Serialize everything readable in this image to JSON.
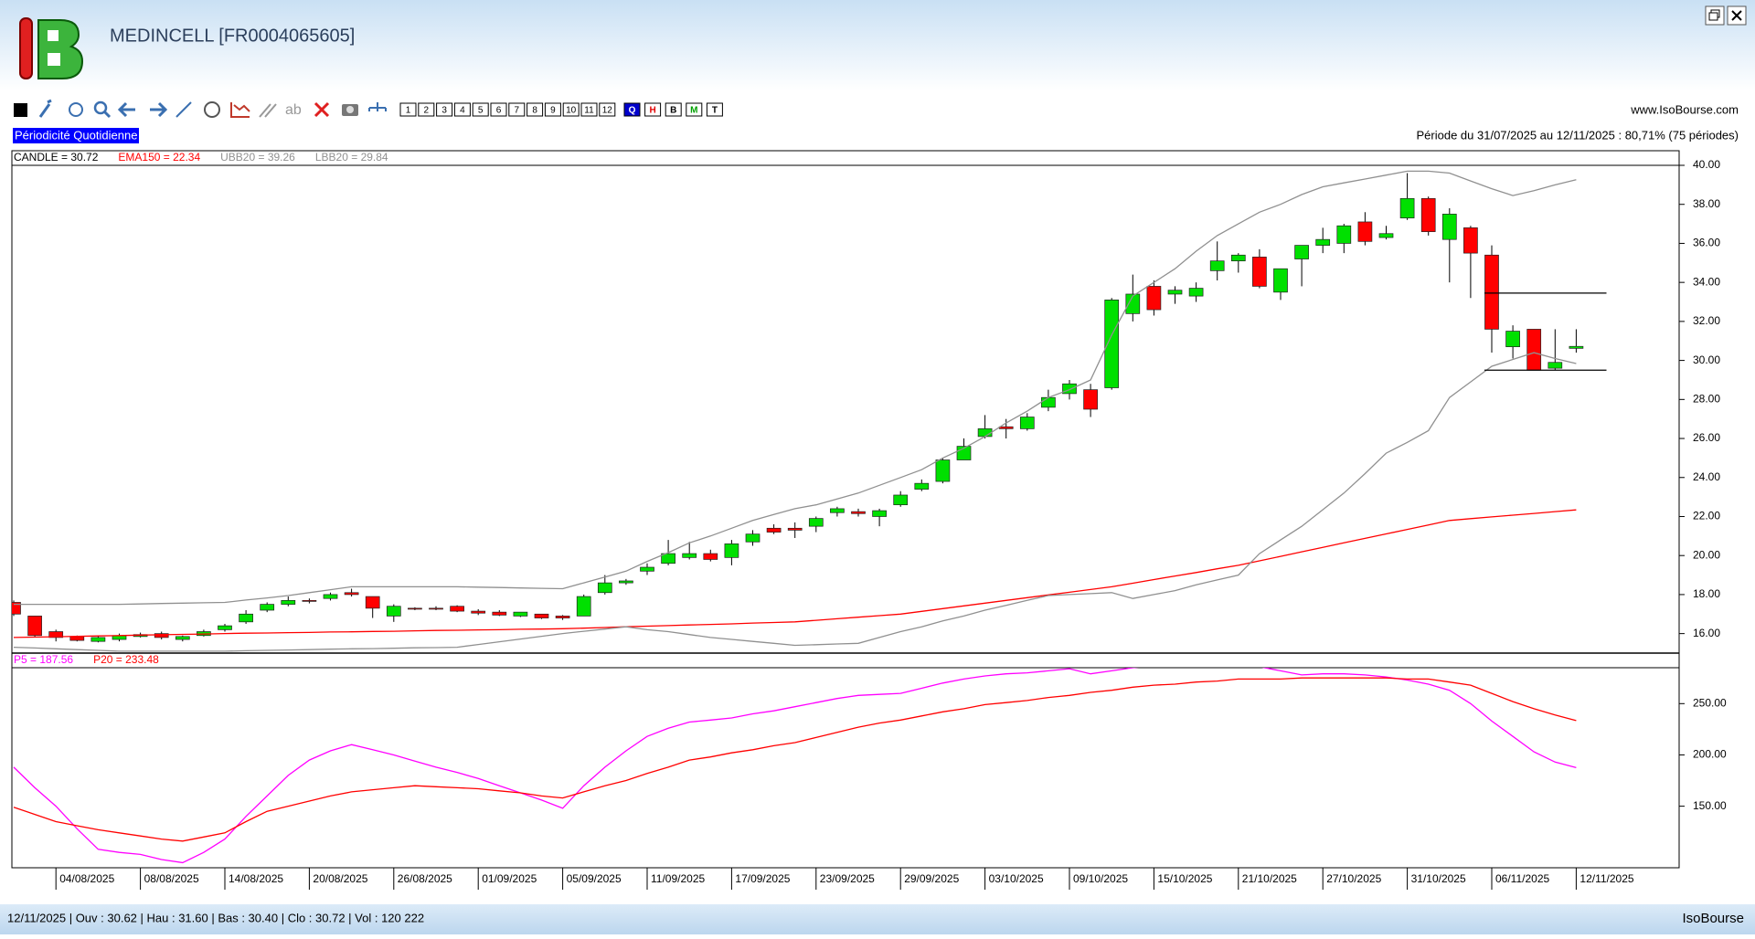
{
  "header": {
    "title": "MEDINCELL [FR0004065605]",
    "site": "www.IsoBourse.com",
    "periodicity": "Périodicité Quotidienne",
    "period": "Période du 31/07/2025 au 12/11/2025 : 80,71% (75 périodes)"
  },
  "toolbar": {
    "periods": [
      "1",
      "2",
      "3",
      "4",
      "5",
      "6",
      "7",
      "8",
      "9",
      "10",
      "11",
      "12"
    ],
    "modes": [
      "Q",
      "H",
      "B",
      "M",
      "T"
    ]
  },
  "chart_data": [
    {
      "type": "candlestick",
      "categories": [
        null,
        null,
        "04/08/2025",
        null,
        null,
        null,
        "08/08/2025",
        null,
        null,
        null,
        "14/08/2025",
        null,
        null,
        null,
        "20/08/2025",
        null,
        null,
        null,
        "26/08/2025",
        null,
        null,
        null,
        "01/09/2025",
        null,
        null,
        null,
        "05/09/2025",
        null,
        null,
        null,
        "11/09/2025",
        null,
        null,
        null,
        "17/09/2025",
        null,
        null,
        null,
        "23/09/2025",
        null,
        null,
        null,
        "29/09/2025",
        null,
        null,
        null,
        "03/10/2025",
        null,
        null,
        null,
        "09/10/2025",
        null,
        null,
        null,
        "15/10/2025",
        null,
        null,
        null,
        "21/10/2025",
        null,
        null,
        null,
        "27/10/2025",
        null,
        null,
        null,
        "31/10/2025",
        null,
        null,
        null,
        "06/11/2025",
        null,
        null,
        null,
        "12/11/2025"
      ],
      "series": [
        {
          "name": "CANDLE = 30.72",
          "color": "#000000",
          "up_color": "#00e000",
          "down_color": "#ff0000",
          "open": [
            17.6,
            16.9,
            16.1,
            15.85,
            15.6,
            15.7,
            15.85,
            16.0,
            15.7,
            15.9,
            16.2,
            16.6,
            17.2,
            17.5,
            17.7,
            17.8,
            18.1,
            17.9,
            16.9,
            17.3,
            17.3,
            17.4,
            17.15,
            17.1,
            16.9,
            17.0,
            16.9,
            16.9,
            18.1,
            18.6,
            19.2,
            19.6,
            19.9,
            20.1,
            19.9,
            20.7,
            21.4,
            21.4,
            21.5,
            22.2,
            22.25,
            22.0,
            22.6,
            23.4,
            23.8,
            24.9,
            26.1,
            26.6,
            26.5,
            27.6,
            28.3,
            28.5,
            28.6,
            32.4,
            33.8,
            33.4,
            33.3,
            34.6,
            35.1,
            35.3,
            33.5,
            35.2,
            35.9,
            36.0,
            37.1,
            36.3,
            37.3,
            38.3,
            36.2,
            36.8,
            35.4,
            30.7,
            31.6,
            29.6,
            30.62
          ],
          "high": [
            17.7,
            16.9,
            16.2,
            15.9,
            15.9,
            16.0,
            16.05,
            16.1,
            15.9,
            16.2,
            16.5,
            17.2,
            17.6,
            17.9,
            17.8,
            18.1,
            18.3,
            17.9,
            17.5,
            17.35,
            17.4,
            17.45,
            17.25,
            17.2,
            17.1,
            17.0,
            16.95,
            18.0,
            19.0,
            18.8,
            19.6,
            20.8,
            20.7,
            20.3,
            20.8,
            21.3,
            21.6,
            21.7,
            22.0,
            22.5,
            22.4,
            22.4,
            23.3,
            23.9,
            25.0,
            26.0,
            27.2,
            27.0,
            27.3,
            28.5,
            29.0,
            28.8,
            33.2,
            34.4,
            34.1,
            33.8,
            34.0,
            36.1,
            35.5,
            35.7,
            34.7,
            35.9,
            36.8,
            37.0,
            37.6,
            36.9,
            39.6,
            38.4,
            37.8,
            36.9,
            35.9,
            31.8,
            31.6,
            31.6,
            31.6
          ],
          "low": [
            16.9,
            15.8,
            15.6,
            15.6,
            15.55,
            15.6,
            15.8,
            15.7,
            15.6,
            15.85,
            16.1,
            16.5,
            17.1,
            17.4,
            17.55,
            17.7,
            17.9,
            16.8,
            16.6,
            17.2,
            17.2,
            17.1,
            16.95,
            16.9,
            16.85,
            16.75,
            16.7,
            16.9,
            18.0,
            18.5,
            19.0,
            19.5,
            19.8,
            19.7,
            19.5,
            20.5,
            21.1,
            20.9,
            21.2,
            22.0,
            22.0,
            21.5,
            22.5,
            23.3,
            23.7,
            24.9,
            26.0,
            26.0,
            26.4,
            27.4,
            28.0,
            27.1,
            28.5,
            32.0,
            32.3,
            32.9,
            33.0,
            34.1,
            34.5,
            33.7,
            33.1,
            33.8,
            35.5,
            35.5,
            35.9,
            36.2,
            37.2,
            36.4,
            34.0,
            33.2,
            30.4,
            30.1,
            29.5,
            29.5,
            30.4
          ],
          "close": [
            17.0,
            15.9,
            15.8,
            15.65,
            15.8,
            15.9,
            15.95,
            15.8,
            15.85,
            16.1,
            16.4,
            17.0,
            17.5,
            17.7,
            17.65,
            18.0,
            18.0,
            17.3,
            17.4,
            17.25,
            17.25,
            17.15,
            17.05,
            16.95,
            17.1,
            16.8,
            16.8,
            17.9,
            18.6,
            18.7,
            19.4,
            20.1,
            20.1,
            19.8,
            20.6,
            21.1,
            21.2,
            21.3,
            21.9,
            22.4,
            22.15,
            22.3,
            23.1,
            23.7,
            24.9,
            25.6,
            26.5,
            26.5,
            27.1,
            28.1,
            28.8,
            27.5,
            33.1,
            33.4,
            32.6,
            33.6,
            33.7,
            35.1,
            35.4,
            33.8,
            34.7,
            35.9,
            36.2,
            36.9,
            36.1,
            36.5,
            38.3,
            36.6,
            37.5,
            35.5,
            31.6,
            31.5,
            29.5,
            29.9,
            30.72
          ]
        },
        {
          "name": "EMA150 = 22.34",
          "color": "#ff0000",
          "values": [
            15.8,
            15.82,
            15.84,
            15.86,
            15.88,
            15.9,
            15.92,
            15.94,
            15.96,
            15.98,
            16.0,
            16.02,
            16.03,
            16.05,
            16.06,
            16.08,
            16.09,
            16.11,
            16.12,
            16.14,
            16.16,
            16.17,
            16.19,
            16.2,
            16.22,
            16.23,
            16.25,
            16.28,
            16.31,
            16.35,
            16.38,
            16.41,
            16.44,
            16.47,
            16.5,
            16.54,
            16.57,
            16.6,
            16.68,
            16.76,
            16.84,
            16.92,
            17.0,
            17.14,
            17.28,
            17.42,
            17.56,
            17.7,
            17.84,
            17.98,
            18.12,
            18.26,
            18.4,
            18.58,
            18.77,
            18.95,
            19.13,
            19.32,
            19.5,
            19.73,
            19.96,
            20.19,
            20.42,
            20.65,
            20.88,
            21.11,
            21.34,
            21.57,
            21.8,
            21.89,
            21.98,
            22.07,
            22.16,
            22.25,
            22.34
          ]
        },
        {
          "name": "UBB20 = 39.26",
          "color": "#909090",
          "values": [
            17.5,
            17.5,
            17.5,
            17.5,
            17.5,
            17.5,
            17.52,
            17.54,
            17.56,
            17.58,
            17.6,
            17.72,
            17.83,
            17.95,
            18.1,
            18.25,
            18.4,
            18.4,
            18.4,
            18.4,
            18.4,
            18.4,
            18.38,
            18.36,
            18.34,
            18.32,
            18.3,
            18.6,
            18.9,
            19.2,
            19.7,
            20.15,
            20.65,
            21.0,
            21.4,
            21.8,
            22.1,
            22.4,
            22.6,
            22.9,
            23.2,
            23.6,
            24.0,
            24.4,
            25.0,
            25.5,
            26.1,
            26.8,
            27.4,
            28.1,
            28.5,
            29.0,
            31.3,
            33.3,
            34.0,
            34.7,
            35.6,
            36.4,
            37.0,
            37.6,
            38.0,
            38.5,
            38.9,
            39.1,
            39.3,
            39.5,
            39.7,
            39.7,
            39.6,
            39.2,
            38.8,
            38.45,
            38.7,
            39.0,
            39.26
          ]
        },
        {
          "name": "LBB20 = 29.84",
          "color": "#909090",
          "values": [
            15.3,
            15.26,
            15.22,
            15.18,
            15.14,
            15.1,
            15.1,
            15.1,
            15.1,
            15.1,
            15.1,
            15.12,
            15.14,
            15.16,
            15.18,
            15.2,
            15.22,
            15.23,
            15.25,
            15.27,
            15.28,
            15.3,
            15.44,
            15.58,
            15.72,
            15.86,
            16.0,
            16.12,
            16.23,
            16.35,
            16.2,
            16.1,
            15.95,
            15.8,
            15.7,
            15.6,
            15.5,
            15.4,
            15.43,
            15.47,
            15.5,
            15.8,
            16.1,
            16.35,
            16.65,
            16.9,
            17.2,
            17.45,
            17.7,
            17.95,
            18.0,
            18.05,
            18.1,
            17.8,
            18.0,
            18.2,
            18.5,
            18.75,
            19.0,
            20.1,
            20.8,
            21.5,
            22.35,
            23.2,
            24.2,
            25.25,
            25.8,
            26.4,
            28.1,
            28.9,
            29.7,
            30.05,
            30.4,
            30.1,
            29.84
          ]
        }
      ],
      "levels": [
        33.45,
        29.5
      ],
      "ylim": [
        15,
        40
      ],
      "yticks": [
        {
          "value": 16,
          "label": "16.00"
        },
        {
          "value": 18,
          "label": "18.00"
        },
        {
          "value": 20,
          "label": "20.00"
        },
        {
          "value": 22,
          "label": "22.00"
        },
        {
          "value": 24,
          "label": "24.00"
        },
        {
          "value": 26,
          "label": "26.00"
        },
        {
          "value": 28,
          "label": "28.00"
        },
        {
          "value": 30,
          "label": "30.00"
        },
        {
          "value": 32,
          "label": "32.00"
        },
        {
          "value": 34,
          "label": "34.00"
        },
        {
          "value": 36,
          "label": "36.00"
        },
        {
          "value": 38,
          "label": "38.00"
        },
        {
          "value": 40,
          "label": "40.00"
        }
      ]
    },
    {
      "type": "line",
      "series": [
        {
          "name": "P5 = 187.56",
          "color": "#ff00ff",
          "values": [
            188,
            168,
            150,
            128,
            108,
            105,
            103,
            98,
            95,
            105,
            118,
            140,
            160,
            180,
            195,
            204,
            210,
            205,
            200,
            194,
            188,
            183,
            177,
            170,
            163,
            156,
            148,
            170,
            188,
            204,
            218,
            226,
            232,
            234,
            236,
            240,
            243,
            247,
            251,
            255,
            258,
            259,
            260,
            265,
            270,
            274,
            277,
            279,
            280,
            282,
            284,
            279,
            282,
            285,
            287,
            288,
            288,
            287,
            287,
            286,
            282,
            278,
            279,
            279,
            278,
            276,
            273,
            269,
            263,
            250,
            233,
            218,
            203,
            193,
            187.56
          ]
        },
        {
          "name": "P20 = 233.48",
          "color": "#ff0000",
          "values": [
            149,
            142,
            135,
            131,
            127,
            124,
            121,
            118,
            116,
            120,
            124,
            135,
            145,
            150,
            155,
            160,
            164,
            166,
            168,
            170,
            169,
            168,
            167,
            165,
            163,
            160,
            158,
            164,
            170,
            175,
            182,
            188,
            195,
            198,
            202,
            205,
            209,
            212,
            217,
            222,
            227,
            231,
            234,
            238,
            242,
            245,
            249,
            251,
            253,
            256,
            258,
            261,
            263,
            266,
            268,
            269,
            271,
            272,
            274,
            274,
            274,
            275,
            275,
            275,
            275,
            275,
            274,
            274,
            271,
            268,
            260,
            252,
            245,
            239,
            233.48
          ]
        }
      ],
      "ylim": [
        90,
        285
      ],
      "yticks": [
        {
          "value": 150,
          "label": "150.00"
        },
        {
          "value": 200,
          "label": "200.00"
        },
        {
          "value": 250,
          "label": "250.00"
        }
      ]
    }
  ],
  "status": {
    "quote": "12/11/2025 | Ouv : 30.62 | Hau : 31.60 | Bas : 30.40 | Clo : 30.72 | Vol : 120 222",
    "brand": "IsoBourse"
  }
}
